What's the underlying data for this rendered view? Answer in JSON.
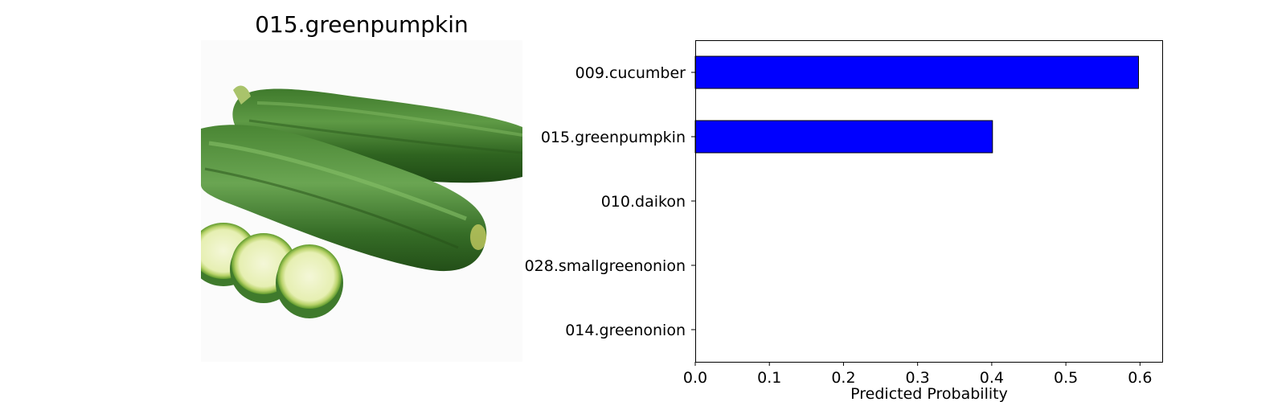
{
  "image_panel": {
    "title": "015.greenpumpkin",
    "photo_icon": "zucchini-photo-icon"
  },
  "chart_data": {
    "type": "bar",
    "orientation": "horizontal",
    "categories": [
      "009.cucumber",
      "015.greenpumpkin",
      "010.daikon",
      "028.smallgreenonion",
      "014.greenonion"
    ],
    "values": [
      0.598,
      0.401,
      0.0,
      0.0,
      0.0
    ],
    "xlabel": "Predicted Probability",
    "xlim": [
      0,
      0.63
    ],
    "xticks": [
      0.0,
      0.1,
      0.2,
      0.3,
      0.4,
      0.5,
      0.6
    ],
    "xtick_labels": [
      "0.0",
      "0.1",
      "0.2",
      "0.3",
      "0.4",
      "0.5",
      "0.6"
    ],
    "bar_color": "#0000ff",
    "edge_color": "#000000",
    "grid": false
  }
}
